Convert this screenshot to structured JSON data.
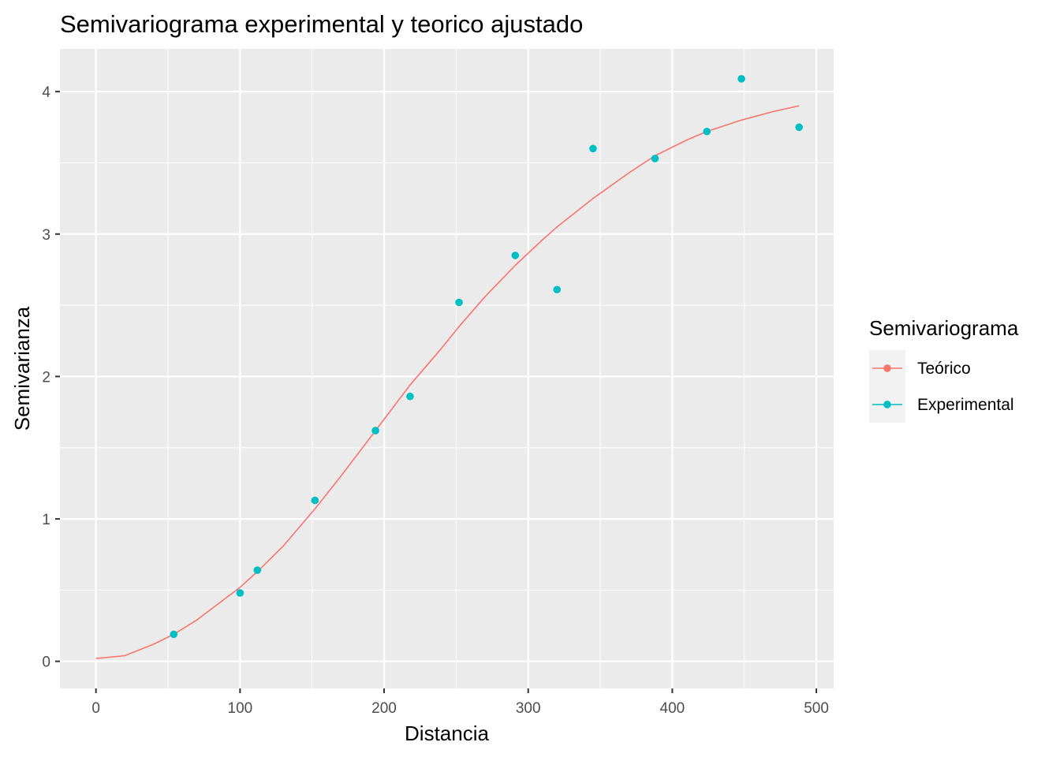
{
  "chart_data": {
    "type": "scatter",
    "title": "Semivariograma experimental y teorico ajustado",
    "xlabel": "Distancia",
    "ylabel": "Semivarianza",
    "xlim": [
      -25,
      512
    ],
    "ylim": [
      -0.19,
      4.3
    ],
    "xticks": [
      0,
      100,
      200,
      300,
      400,
      500
    ],
    "yticks": [
      0,
      1,
      2,
      3,
      4
    ],
    "grid": true,
    "legend": {
      "title": "Semivariograma",
      "position": "right",
      "entries": [
        "Teórico",
        "Experimental"
      ]
    },
    "series": [
      {
        "name": "Teórico",
        "kind": "line",
        "color": "#F8766D",
        "x": [
          0,
          20,
          40,
          54,
          70,
          100,
          112,
          130,
          152,
          170,
          194,
          218,
          240,
          252,
          270,
          291,
          310,
          320,
          345,
          370,
          388,
          410,
          424,
          448,
          470,
          488
        ],
        "y": [
          0.02,
          0.04,
          0.12,
          0.19,
          0.29,
          0.52,
          0.63,
          0.81,
          1.07,
          1.3,
          1.62,
          1.94,
          2.2,
          2.35,
          2.56,
          2.78,
          2.96,
          3.05,
          3.25,
          3.43,
          3.55,
          3.66,
          3.72,
          3.8,
          3.86,
          3.9
        ]
      },
      {
        "name": "Experimental",
        "kind": "points",
        "color": "#00BFC4",
        "x": [
          54,
          100,
          112,
          152,
          194,
          218,
          252,
          291,
          320,
          345,
          388,
          424,
          448,
          488
        ],
        "y": [
          0.19,
          0.48,
          0.64,
          1.13,
          1.62,
          1.86,
          2.52,
          2.85,
          2.61,
          3.6,
          3.53,
          3.72,
          4.09,
          3.75
        ]
      }
    ]
  }
}
